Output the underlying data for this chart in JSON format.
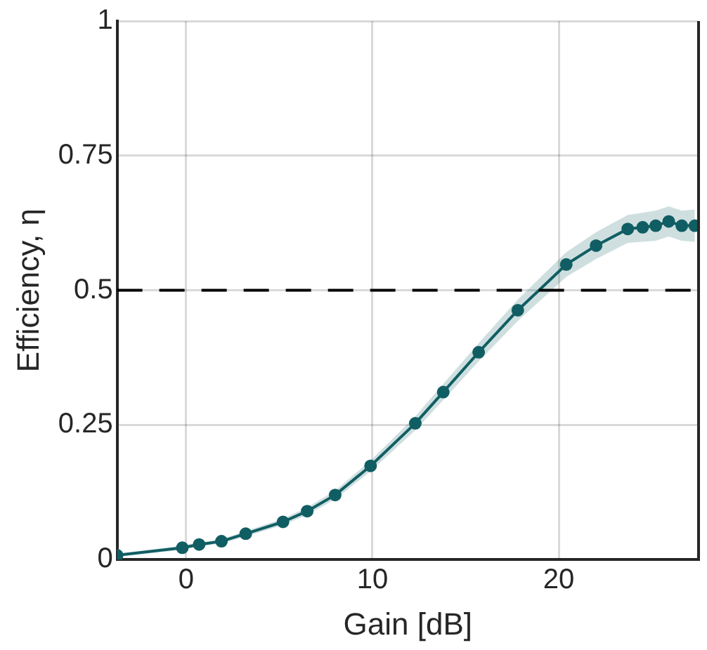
{
  "chart_data": {
    "type": "line",
    "xlabel": "Gain [dB]",
    "ylabel": "Efficiency, η",
    "x": [
      -3.7,
      -0.2,
      0.7,
      1.9,
      3.2,
      5.2,
      6.5,
      8.0,
      9.9,
      12.3,
      13.8,
      15.7,
      17.8,
      20.4,
      22.0,
      23.7,
      24.5,
      25.2,
      25.9,
      26.6,
      27.3
    ],
    "series": [
      {
        "color": "#115e63",
        "values": [
          0.008,
          0.022,
          0.028,
          0.034,
          0.048,
          0.07,
          0.09,
          0.12,
          0.174,
          0.253,
          0.311,
          0.385,
          0.463,
          0.548,
          0.583,
          0.614,
          0.617,
          0.62,
          0.628,
          0.62,
          0.62
        ],
        "lower": [
          0.005,
          0.018,
          0.024,
          0.03,
          0.043,
          0.064,
          0.083,
          0.112,
          0.164,
          0.24,
          0.296,
          0.368,
          0.443,
          0.525,
          0.558,
          0.588,
          0.59,
          0.592,
          0.6,
          0.592,
          0.59
        ],
        "upper": [
          0.011,
          0.026,
          0.032,
          0.038,
          0.053,
          0.076,
          0.097,
          0.128,
          0.184,
          0.266,
          0.326,
          0.402,
          0.483,
          0.571,
          0.608,
          0.64,
          0.644,
          0.648,
          0.656,
          0.648,
          0.65
        ]
      }
    ],
    "xlim": [
      -3.7,
      27.5
    ],
    "xticks": [
      0,
      10,
      20
    ],
    "ylim": [
      0,
      1
    ],
    "yticks": [
      0,
      {
        "value": 0.25,
        "label": "0.25"
      },
      {
        "value": 0.5,
        "label": "0.5"
      },
      {
        "value": 0.75,
        "label": "0.75"
      },
      1
    ],
    "grid": true,
    "marker": "circle",
    "line_style": "solid",
    "ref_lines": [
      {
        "axis": "y",
        "value": 0.5,
        "color": "#000000",
        "line_style": "dashed"
      }
    ]
  }
}
